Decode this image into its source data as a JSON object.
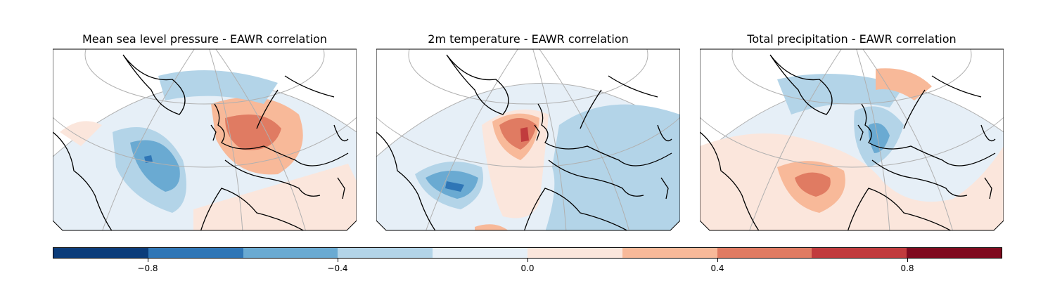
{
  "panels": [
    {
      "title": "Mean sea level pressure - EAWR correlation"
    },
    {
      "title": "2m temperature - EAWR correlation"
    },
    {
      "title": "Total precipitation - EAWR correlation"
    }
  ],
  "colorbar": {
    "colors": [
      "#0b3c7a",
      "#2f76b6",
      "#6aaad2",
      "#b3d4e8",
      "#e6eff7",
      "#fbe6dc",
      "#f8b999",
      "#e07b62",
      "#c13b3d",
      "#7f0a1f"
    ],
    "ticks": [
      "−0.8",
      "−0.4",
      "0.0",
      "0.4",
      "0.8"
    ],
    "min": -1.0,
    "max": 1.0
  },
  "colors": {
    "ocean_base": "#e6eff7",
    "land_outline": "#000000",
    "graticule": "#b0b0b0"
  }
}
